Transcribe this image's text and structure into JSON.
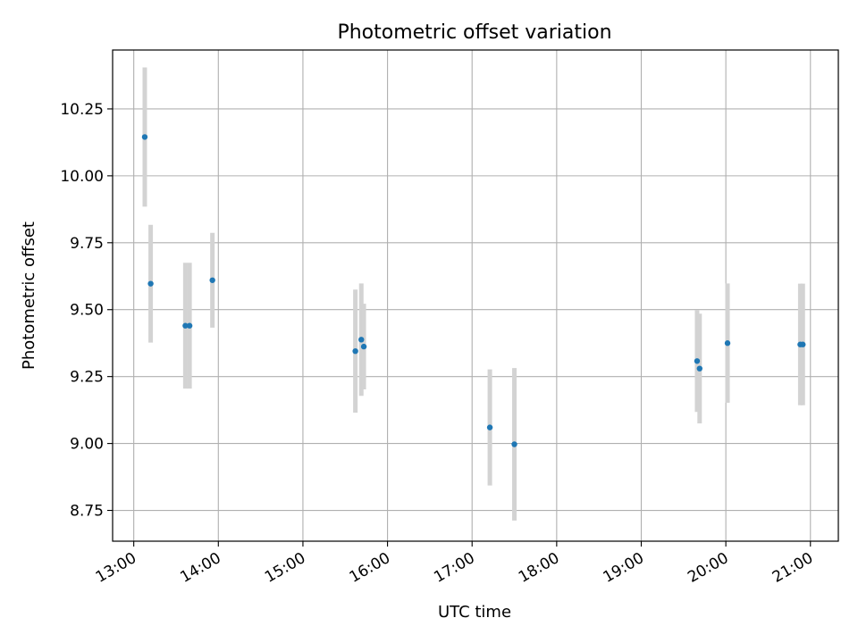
{
  "chart_data": {
    "type": "scatter",
    "title": "Photometric offset variation",
    "xlabel": "UTC time",
    "ylabel": "Photometric offset",
    "x_unit": "hours UTC",
    "xlim": [
      12.75,
      21.33
    ],
    "ylim": [
      8.635,
      10.47
    ],
    "grid": true,
    "x_ticks": [
      {
        "value": 13,
        "label": "13:00"
      },
      {
        "value": 14,
        "label": "14:00"
      },
      {
        "value": 15,
        "label": "15:00"
      },
      {
        "value": 16,
        "label": "16:00"
      },
      {
        "value": 17,
        "label": "17:00"
      },
      {
        "value": 18,
        "label": "18:00"
      },
      {
        "value": 19,
        "label": "19:00"
      },
      {
        "value": 20,
        "label": "20:00"
      },
      {
        "value": 21,
        "label": "21:00"
      }
    ],
    "y_ticks": [
      {
        "value": 8.75,
        "label": "8.75"
      },
      {
        "value": 9.0,
        "label": "9.00"
      },
      {
        "value": 9.25,
        "label": "9.25"
      },
      {
        "value": 9.5,
        "label": "9.50"
      },
      {
        "value": 9.75,
        "label": "9.75"
      },
      {
        "value": 10.0,
        "label": "10.00"
      },
      {
        "value": 10.25,
        "label": "10.25"
      }
    ],
    "series": [
      {
        "name": "Photometric offset",
        "marker_color": "#1f77b4",
        "errorbar_color": "#d3d3d3",
        "points": [
          {
            "x": 13.13,
            "y": 10.145,
            "yerr": 0.26
          },
          {
            "x": 13.2,
            "y": 9.597,
            "yerr": 0.22
          },
          {
            "x": 13.61,
            "y": 9.44,
            "yerr": 0.235
          },
          {
            "x": 13.66,
            "y": 9.44,
            "yerr": 0.235
          },
          {
            "x": 13.93,
            "y": 9.61,
            "yerr": 0.177
          },
          {
            "x": 15.62,
            "y": 9.345,
            "yerr": 0.23
          },
          {
            "x": 15.69,
            "y": 9.388,
            "yerr": 0.21
          },
          {
            "x": 15.72,
            "y": 9.362,
            "yerr": 0.16
          },
          {
            "x": 17.21,
            "y": 9.06,
            "yerr": 0.217
          },
          {
            "x": 17.5,
            "y": 8.997,
            "yerr": 0.285
          },
          {
            "x": 19.66,
            "y": 9.308,
            "yerr": 0.19
          },
          {
            "x": 19.69,
            "y": 9.28,
            "yerr": 0.205
          },
          {
            "x": 20.02,
            "y": 9.375,
            "yerr": 0.223
          },
          {
            "x": 20.88,
            "y": 9.37,
            "yerr": 0.227
          },
          {
            "x": 20.91,
            "y": 9.37,
            "yerr": 0.227
          }
        ]
      }
    ]
  }
}
